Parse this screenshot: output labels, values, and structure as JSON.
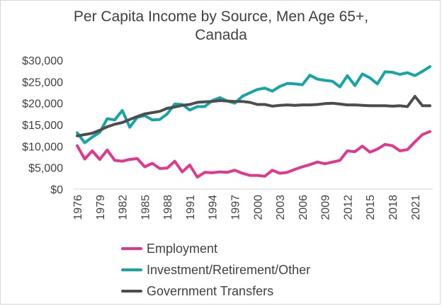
{
  "chart_data": {
    "type": "line",
    "title": "Per Capita Income by Source, Men Age 65+,",
    "subtitle": "Canada",
    "x_ticks": [
      "1976",
      "1979",
      "1982",
      "1985",
      "1988",
      "1991",
      "1994",
      "1997",
      "2000",
      "2003",
      "2006",
      "2009",
      "2012",
      "2015",
      "2018",
      "2021"
    ],
    "y_ticks": [
      "$0",
      "$5,000",
      "$10,000",
      "$15,000",
      "$20,000",
      "$25,000",
      "$30,000"
    ],
    "ylim": [
      0,
      30000
    ],
    "xlim": [
      1976,
      2023
    ],
    "grid": false,
    "legend_position": "bottom",
    "x": [
      1976,
      1977,
      1978,
      1979,
      1980,
      1981,
      1982,
      1983,
      1984,
      1985,
      1986,
      1987,
      1988,
      1989,
      1990,
      1991,
      1992,
      1993,
      1994,
      1995,
      1996,
      1997,
      1998,
      1999,
      2000,
      2001,
      2002,
      2003,
      2004,
      2005,
      2006,
      2007,
      2008,
      2009,
      2010,
      2011,
      2012,
      2013,
      2014,
      2015,
      2016,
      2017,
      2018,
      2019,
      2020,
      2021,
      2022,
      2023
    ],
    "series": [
      {
        "name": "Employment",
        "color": "#e0388f",
        "values": [
          10100,
          7000,
          8900,
          6900,
          9100,
          6700,
          6500,
          6900,
          7100,
          5200,
          6000,
          4800,
          4900,
          6500,
          4000,
          5600,
          2800,
          3900,
          3800,
          4000,
          3900,
          4400,
          3700,
          3200,
          3200,
          3000,
          4400,
          3700,
          3900,
          4600,
          5200,
          5700,
          6300,
          5900,
          6300,
          6700,
          8900,
          8700,
          10000,
          8600,
          9300,
          10400,
          10100,
          8900,
          9200,
          11000,
          12700,
          13400
        ]
      },
      {
        "name": "Investment/Retirement/Other",
        "color": "#16a5a5",
        "values": [
          13100,
          10800,
          12100,
          13200,
          16400,
          16100,
          18300,
          14400,
          16700,
          17100,
          16100,
          16200,
          17500,
          19800,
          19700,
          18400,
          19200,
          19200,
          20600,
          21300,
          20500,
          20000,
          21600,
          22400,
          23200,
          23500,
          22800,
          23900,
          24600,
          24500,
          24300,
          26500,
          25600,
          25300,
          25100,
          23800,
          26400,
          24100,
          26800,
          25900,
          24500,
          27300,
          27200,
          26700,
          27100,
          26400,
          27400,
          28500
        ]
      },
      {
        "name": "Government Transfers",
        "color": "#4d4d4d",
        "values": [
          12400,
          12700,
          13000,
          13700,
          14500,
          15100,
          15500,
          16200,
          16900,
          17500,
          17800,
          18100,
          18800,
          19100,
          19500,
          19700,
          20200,
          20300,
          20400,
          20600,
          20500,
          20400,
          20400,
          20200,
          19700,
          19700,
          19300,
          19500,
          19600,
          19500,
          19600,
          19600,
          19700,
          19900,
          20000,
          19800,
          19600,
          19600,
          19500,
          19400,
          19400,
          19400,
          19300,
          19400,
          19200,
          21600,
          19400,
          19400
        ]
      }
    ]
  }
}
